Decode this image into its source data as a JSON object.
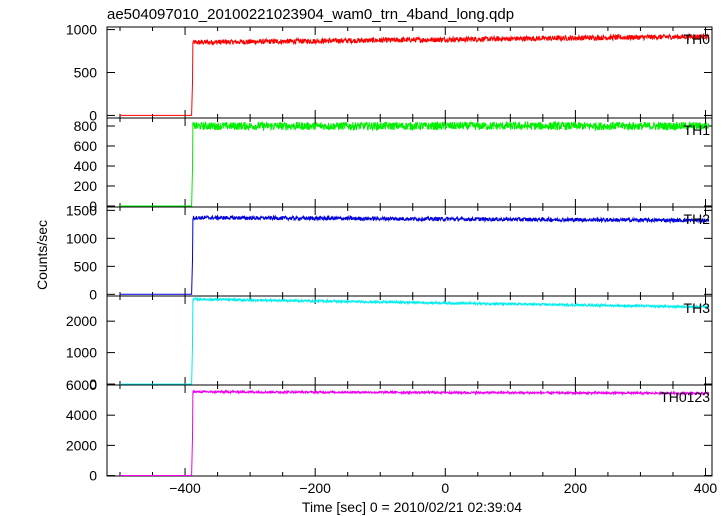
{
  "chart_data": {
    "type": "line",
    "title": "ae504097010_20100221023904_wam0_trn_4band_long.qdp",
    "xlabel": "Time [sec] 0 = 2010/02/21 02:39:04",
    "ylabel": "Counts/sec",
    "xlim": [
      -520,
      410
    ],
    "x_ticks": [
      -400,
      -200,
      0,
      200,
      400
    ],
    "trigger_time": -390,
    "data_start": -500,
    "data_end": 405,
    "grid": false,
    "legend": "per-panel label at top-right",
    "series": [
      {
        "name": "TH0",
        "color": "#ff0000",
        "ylim": [
          -30,
          1030
        ],
        "y_ticks": [
          0,
          500,
          1000
        ],
        "pre_level": 0,
        "post_start": 850,
        "post_end": 920,
        "noise": 30
      },
      {
        "name": "TH1",
        "color": "#00ee00",
        "ylim": [
          -10,
          880
        ],
        "y_ticks": [
          0,
          200,
          400,
          600,
          800
        ],
        "pre_level": 0,
        "post_start": 800,
        "post_end": 800,
        "noise": 40
      },
      {
        "name": "TH2",
        "color": "#0000dd",
        "ylim": [
          -30,
          1560
        ],
        "y_ticks": [
          0,
          500,
          1000,
          1500
        ],
        "pre_level": 0,
        "post_start": 1370,
        "post_end": 1320,
        "noise": 35
      },
      {
        "name": "TH3",
        "color": "#00eeee",
        "ylim": [
          -30,
          2800
        ],
        "y_ticks": [
          0,
          1000,
          2000
        ],
        "pre_level": 0,
        "post_start": 2700,
        "post_end": 2450,
        "noise": 35
      },
      {
        "name": "TH0123",
        "color": "#ee00ee",
        "ylim": [
          -30,
          6000
        ],
        "y_ticks": [
          0,
          2000,
          4000,
          6000
        ],
        "pre_level": 0,
        "post_start": 5550,
        "post_end": 5450,
        "noise": 70
      }
    ]
  }
}
